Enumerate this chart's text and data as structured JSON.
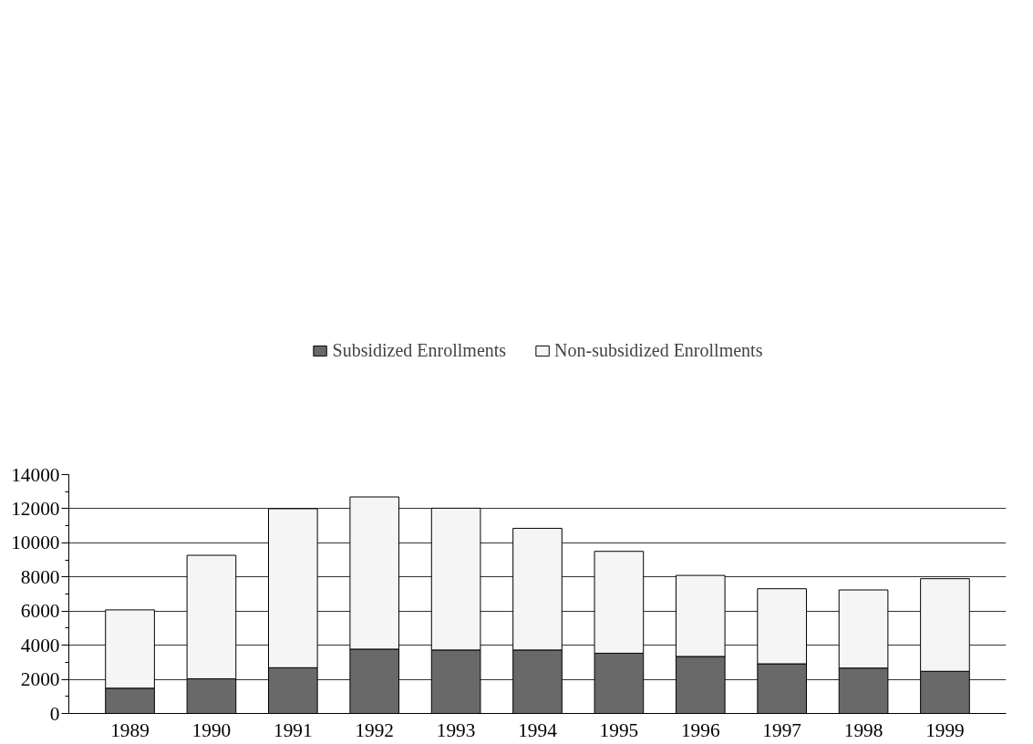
{
  "chart_data": {
    "type": "bar",
    "stacked": true,
    "categories": [
      "1989",
      "1990",
      "1991",
      "1992",
      "1993",
      "1994",
      "1995",
      "1996",
      "1997",
      "1998",
      "1999"
    ],
    "series": [
      {
        "name": "Subsidized Enrollments",
        "color": "#696969",
        "values": [
          1480,
          2030,
          2680,
          3770,
          3720,
          3720,
          3530,
          3340,
          2910,
          2660,
          2470
        ]
      },
      {
        "name": "Non-subsidized Enrollments",
        "color": "#f5f5f5",
        "values": [
          4590,
          7240,
          9320,
          8920,
          8310,
          7130,
          5970,
          4750,
          4400,
          4580,
          5430
        ]
      }
    ],
    "ylim": [
      0,
      14000
    ],
    "yticks": [
      0,
      2000,
      4000,
      6000,
      8000,
      10000,
      12000,
      14000
    ],
    "grid": "y",
    "legend": "top"
  }
}
